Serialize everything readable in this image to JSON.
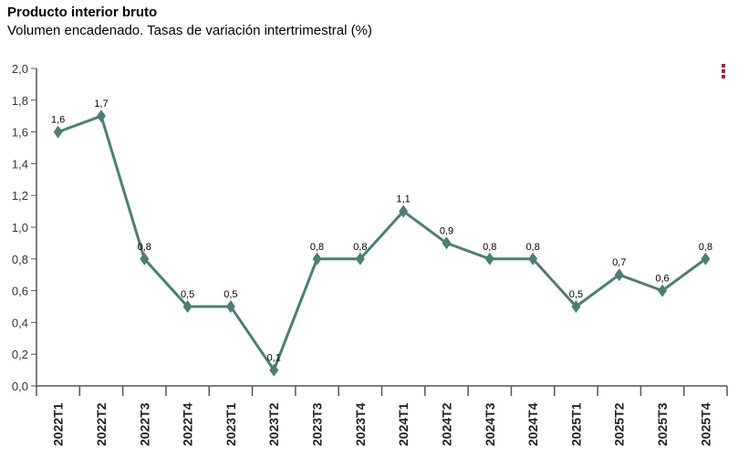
{
  "title": "Producto interior bruto",
  "subtitle": "Volumen encadenado. Tasas de variación intertrimestral (%)",
  "menu_icon": "vertical-ellipsis-icon",
  "colors": {
    "line": "#4a7f73",
    "menu": "#a3203a",
    "axis": "#555555"
  },
  "chart_data": {
    "type": "line",
    "title": "Producto interior bruto",
    "subtitle": "Volumen encadenado. Tasas de variación intertrimestral (%)",
    "categories": [
      "2022T1",
      "2022T2",
      "2022T3",
      "2022T4",
      "2023T1",
      "2023T2",
      "2023T3",
      "2023T4",
      "2024T1",
      "2024T2",
      "2024T3",
      "2024T4",
      "2025T1",
      "2025T2",
      "2025T3",
      "2025T4"
    ],
    "values": [
      1.6,
      1.7,
      0.8,
      0.5,
      0.5,
      0.1,
      0.8,
      0.8,
      1.1,
      0.9,
      0.8,
      0.8,
      0.5,
      0.7,
      0.6,
      0.8
    ],
    "data_labels": [
      "1,6",
      "1,7",
      "0,8",
      "0,5",
      "0,5",
      "0,1",
      "0,8",
      "0,8",
      "1,1",
      "0,9",
      "0,8",
      "0,8",
      "0,5",
      "0,7",
      "0,6",
      "0,8"
    ],
    "yticks": [
      "0,0",
      "0,2",
      "0,4",
      "0,6",
      "0,8",
      "1,0",
      "1,2",
      "1,4",
      "1,6",
      "1,8",
      "2,0"
    ],
    "ylim": [
      0,
      2
    ],
    "marker": "diamond",
    "grid": false
  }
}
